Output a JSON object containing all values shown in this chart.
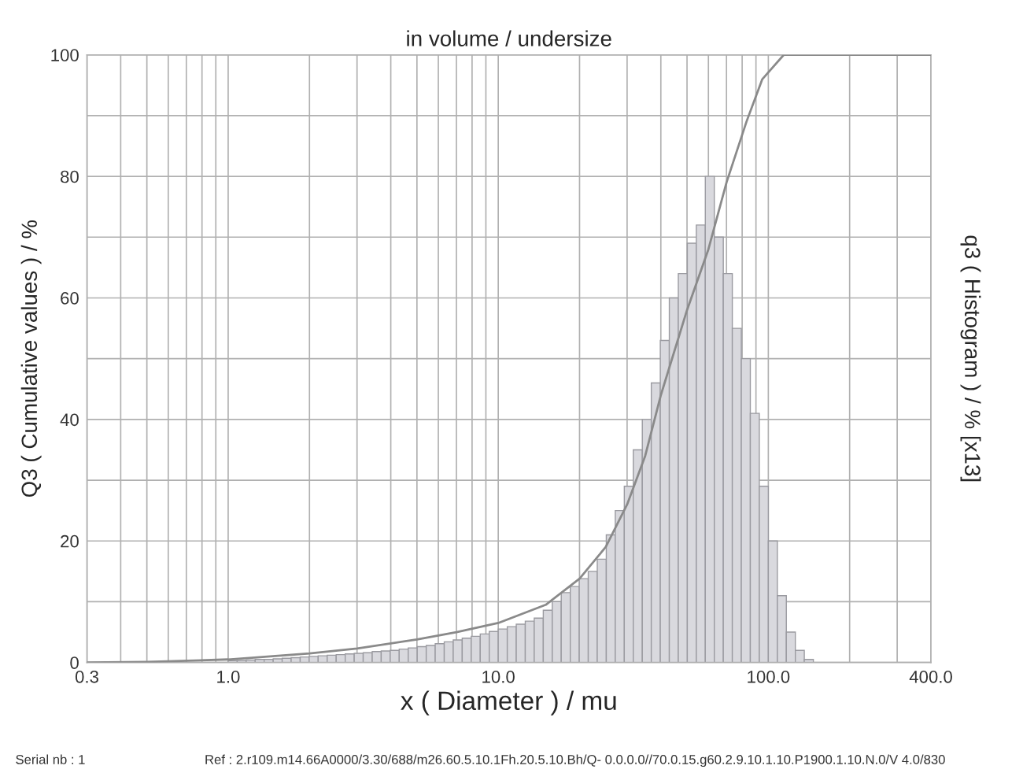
{
  "chart_data": {
    "type": "histogram",
    "title": "in volume / undersize",
    "xlabel": "x ( Diameter ) / mu",
    "ylabel": "Q3 ( Cumulative values ) / %",
    "y2label": "q3 ( Histogram ) / % [x13]",
    "log": "x",
    "grid": true,
    "legend": false,
    "xlim": [
      0.3,
      400
    ],
    "ylim": [
      0,
      100
    ],
    "xticks": [
      {
        "value": 0.3,
        "label": "0.3"
      },
      {
        "value": 0.4,
        "label": null
      },
      {
        "value": 0.5,
        "label": null
      },
      {
        "value": 0.6,
        "label": null
      },
      {
        "value": 0.7,
        "label": null
      },
      {
        "value": 0.8,
        "label": null
      },
      {
        "value": 0.9,
        "label": null
      },
      {
        "value": 1,
        "label": "1.0"
      },
      {
        "value": 2,
        "label": null
      },
      {
        "value": 3,
        "label": null
      },
      {
        "value": 4,
        "label": null
      },
      {
        "value": 5,
        "label": null
      },
      {
        "value": 6,
        "label": null
      },
      {
        "value": 7,
        "label": null
      },
      {
        "value": 8,
        "label": null
      },
      {
        "value": 9,
        "label": null
      },
      {
        "value": 10,
        "label": "10.0"
      },
      {
        "value": 20,
        "label": null
      },
      {
        "value": 30,
        "label": null
      },
      {
        "value": 40,
        "label": null
      },
      {
        "value": 50,
        "label": null
      },
      {
        "value": 60,
        "label": null
      },
      {
        "value": 70,
        "label": null
      },
      {
        "value": 80,
        "label": null
      },
      {
        "value": 90,
        "label": null
      },
      {
        "value": 100,
        "label": "100.0"
      },
      {
        "value": 200,
        "label": null
      },
      {
        "value": 300,
        "label": null
      },
      {
        "value": 400,
        "label": "400.0"
      }
    ],
    "yticks": [
      0,
      {
        "value": 10,
        "label": null
      },
      20,
      {
        "value": 30,
        "label": null
      },
      40,
      {
        "value": 50,
        "label": null
      },
      60,
      {
        "value": 70,
        "label": null
      },
      80,
      {
        "value": 90,
        "label": null
      },
      100
    ],
    "series": [
      {
        "color": "#d9d9de",
        "bins": [
          1,
          1.08,
          1.166,
          1.259,
          1.359,
          1.468,
          1.585,
          1.711,
          1.848,
          1.995,
          2.154,
          2.326,
          2.512,
          2.712,
          2.929,
          3.162,
          3.415,
          3.687,
          3.981,
          4.299,
          4.642,
          5.012,
          5.412,
          5.843,
          6.31,
          6.813,
          7.356,
          7.943,
          8.577,
          9.261,
          10,
          10.8,
          11.66,
          12.59,
          13.59,
          14.68,
          15.85,
          17.11,
          18.48,
          19.95,
          21.54,
          23.26,
          25.12,
          27.12,
          29.29,
          31.62,
          34.15,
          36.87,
          39.81,
          42.99,
          46.42,
          50.12,
          54.12,
          58.43,
          63.1,
          68.13,
          73.56,
          79.43,
          85.77,
          92.61,
          100,
          108,
          116.6,
          125.9,
          135.9,
          146.8
        ],
        "values": [
          0.3,
          0.3,
          0.4,
          0.5,
          0.5,
          0.6,
          0.7,
          0.8,
          0.9,
          1.0,
          1.1,
          1.2,
          1.3,
          1.4,
          1.5,
          1.6,
          1.8,
          1.9,
          2.0,
          2.2,
          2.4,
          2.6,
          2.8,
          3.1,
          3.4,
          3.7,
          4.0,
          4.3,
          4.7,
          5.1,
          5.5,
          5.9,
          6.3,
          6.8,
          7.3,
          8.6,
          10,
          11.5,
          12.5,
          13.8,
          15,
          17,
          21,
          25,
          29,
          35,
          40,
          46,
          53,
          60,
          64,
          69,
          72,
          80,
          70,
          64,
          55,
          50,
          41,
          29,
          20,
          11,
          5,
          2,
          0.5
        ]
      },
      {
        "type": "line",
        "color": "#8a8a8a",
        "x": [
          0.3,
          0.5,
          1,
          2,
          3,
          5,
          7,
          10,
          15,
          20,
          25,
          30,
          35,
          40,
          50,
          60,
          70,
          83,
          95,
          114,
          400
        ],
        "values": [
          0,
          0.1,
          0.5,
          1.5,
          2.3,
          3.8,
          5,
          6.5,
          9.5,
          13.8,
          19,
          26,
          34,
          44,
          58,
          68,
          79,
          89,
          96,
          100,
          100
        ]
      }
    ],
    "annotations": [
      "Serial nb : 1",
      "Ref : 2.r109.m14.66A0000/3.30/688/m26.60.5.10.1Fh.20.5.10.Bh/Q- 0.0.0.0//70.0.15.g60.2.9.10.1.10.P1900.1.10.N.0/V 4.0/830"
    ]
  }
}
